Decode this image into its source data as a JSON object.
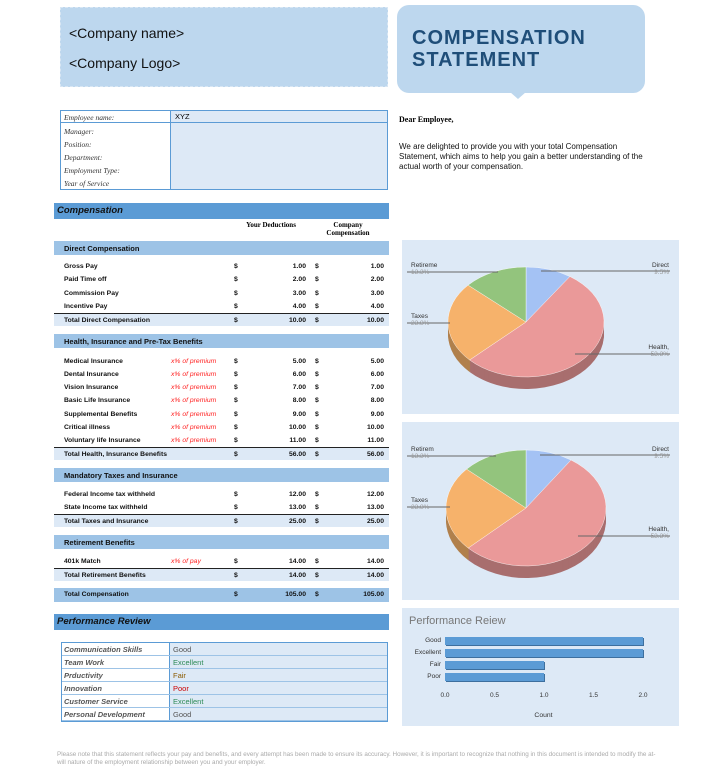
{
  "header": {
    "company_name": "<Company name>",
    "company_logo": "<Company Logo>",
    "title_line1": "COMPENSATION",
    "title_line2": "STATEMENT"
  },
  "employee": {
    "labels": [
      "Employee name:",
      "Manager:",
      "Position:",
      "Department:",
      "Employment Type:",
      "Year of Service"
    ],
    "name_value": "XYZ"
  },
  "letter": {
    "greeting": "Dear Employee,",
    "body": "We are delighted to provide you with your total Compensation Statement, which aims to help you gain a better understanding of the actual worth of your compensation."
  },
  "compensation": {
    "title": "Compensation",
    "col_deductions": "Your Deductions",
    "col_company": "Company Compensation",
    "currency": "$",
    "sections": [
      {
        "title": "Direct Compensation",
        "rows": [
          {
            "label": "Gross Pay",
            "note": "",
            "ded": "1.00",
            "comp": "1.00"
          },
          {
            "label": "Paid Time off",
            "note": "",
            "ded": "2.00",
            "comp": "2.00"
          },
          {
            "label": "Commission Pay",
            "note": "",
            "ded": "3.00",
            "comp": "3.00"
          },
          {
            "label": "Incentive Pay",
            "note": "",
            "ded": "4.00",
            "comp": "4.00"
          }
        ],
        "total": {
          "label": "Total Direct Compensation",
          "ded": "10.00",
          "comp": "10.00"
        }
      },
      {
        "title": "Health, Insurance and Pre-Tax Benefits",
        "rows": [
          {
            "label": "Medical Insurance",
            "note": "x% of premium",
            "ded": "5.00",
            "comp": "5.00"
          },
          {
            "label": "Dental Insurance",
            "note": "x% of premium",
            "ded": "6.00",
            "comp": "6.00"
          },
          {
            "label": "Vision Insurance",
            "note": "x% of premium",
            "ded": "7.00",
            "comp": "7.00"
          },
          {
            "label": "Basic Life Insurance",
            "note": "x% of premium",
            "ded": "8.00",
            "comp": "8.00"
          },
          {
            "label": "Supplemental Benefits",
            "note": "x% of premium",
            "ded": "9.00",
            "comp": "9.00"
          },
          {
            "label": "Critical illness",
            "note": "x% of premium",
            "ded": "10.00",
            "comp": "10.00"
          },
          {
            "label": "Voluntary life Insurance",
            "note": "x% of premium",
            "ded": "11.00",
            "comp": "11.00"
          }
        ],
        "total": {
          "label": "Total Health, Insurance Benefits",
          "ded": "56.00",
          "comp": "56.00"
        }
      },
      {
        "title": "Mandatory Taxes and Insurance",
        "rows": [
          {
            "label": "Federal Income tax withheld",
            "note": "",
            "ded": "12.00",
            "comp": "12.00"
          },
          {
            "label": "State Income tax withheld",
            "note": "",
            "ded": "13.00",
            "comp": "13.00"
          }
        ],
        "total": {
          "label": "Total Taxes and Insurance",
          "ded": "25.00",
          "comp": "25.00"
        }
      },
      {
        "title": "Retirement Benefits",
        "rows": [
          {
            "label": "401k Match",
            "note": "x% of pay",
            "ded": "14.00",
            "comp": "14.00"
          }
        ],
        "total": {
          "label": "Total Retirement Benefits",
          "ded": "14.00",
          "comp": "14.00"
        }
      }
    ],
    "grand_total": {
      "label": "Total Compensation",
      "ded": "105.00",
      "comp": "105.00"
    }
  },
  "performance": {
    "title": "Performance Review",
    "rows": [
      {
        "skill": "Communication Skills",
        "rating": "Good",
        "color": "#555555"
      },
      {
        "skill": "Team Work",
        "rating": "Excellent",
        "color": "#2e8b57"
      },
      {
        "skill": "Prductivity",
        "rating": "Fair",
        "color": "#8b5a00"
      },
      {
        "skill": "Innovation",
        "rating": "Poor",
        "color": "#cc0000"
      },
      {
        "skill": "Customer Service",
        "rating": "Excellent",
        "color": "#2e8b57"
      },
      {
        "skill": "Personal Development",
        "rating": "Good",
        "color": "#555555"
      }
    ]
  },
  "chart_data": [
    {
      "type": "pie",
      "title": "",
      "slices": [
        {
          "label": "Direct",
          "value": 9.5,
          "pct": "9.5%",
          "color": "#a4c2f4"
        },
        {
          "label": "Health,",
          "value": 53.3,
          "pct": "53.3%",
          "color": "#ea9999"
        },
        {
          "label": "Taxes",
          "value": 23.8,
          "pct": "23.8%",
          "color": "#f6b26b"
        },
        {
          "label": "Retireme",
          "value": 13.3,
          "pct": "13.3%",
          "color": "#93c47d"
        }
      ]
    },
    {
      "type": "pie",
      "title": "",
      "slices": [
        {
          "label": "Direct",
          "value": 9.5,
          "pct": "9.5%",
          "color": "#a4c2f4"
        },
        {
          "label": "Health,",
          "value": 53.3,
          "pct": "53.3%",
          "color": "#ea9999"
        },
        {
          "label": "Taxes",
          "value": 23.8,
          "pct": "23.8%",
          "color": "#f6b26b"
        },
        {
          "label": "Retirem",
          "value": 13.3,
          "pct": "13.3%",
          "color": "#93c47d"
        }
      ]
    },
    {
      "type": "bar",
      "orientation": "horizontal",
      "title": "Performance Reiew",
      "categories": [
        "Good",
        "Excellent",
        "Fair",
        "Poor"
      ],
      "values": [
        2,
        2,
        1,
        1
      ],
      "xlabel": "Count",
      "xlim": [
        0,
        2
      ],
      "xticks": [
        "0.0",
        "0.5",
        "1.0",
        "1.5",
        "2.0"
      ],
      "color": "#5b9bd5"
    }
  ],
  "footer": "Please note that this statement reflects your pay and benefits, and every attempt has been made to ensure its accuracy. However, it is important to recognize that nothing in this document is intended to modify the at-will nature of the employment relationship between you and your employer."
}
